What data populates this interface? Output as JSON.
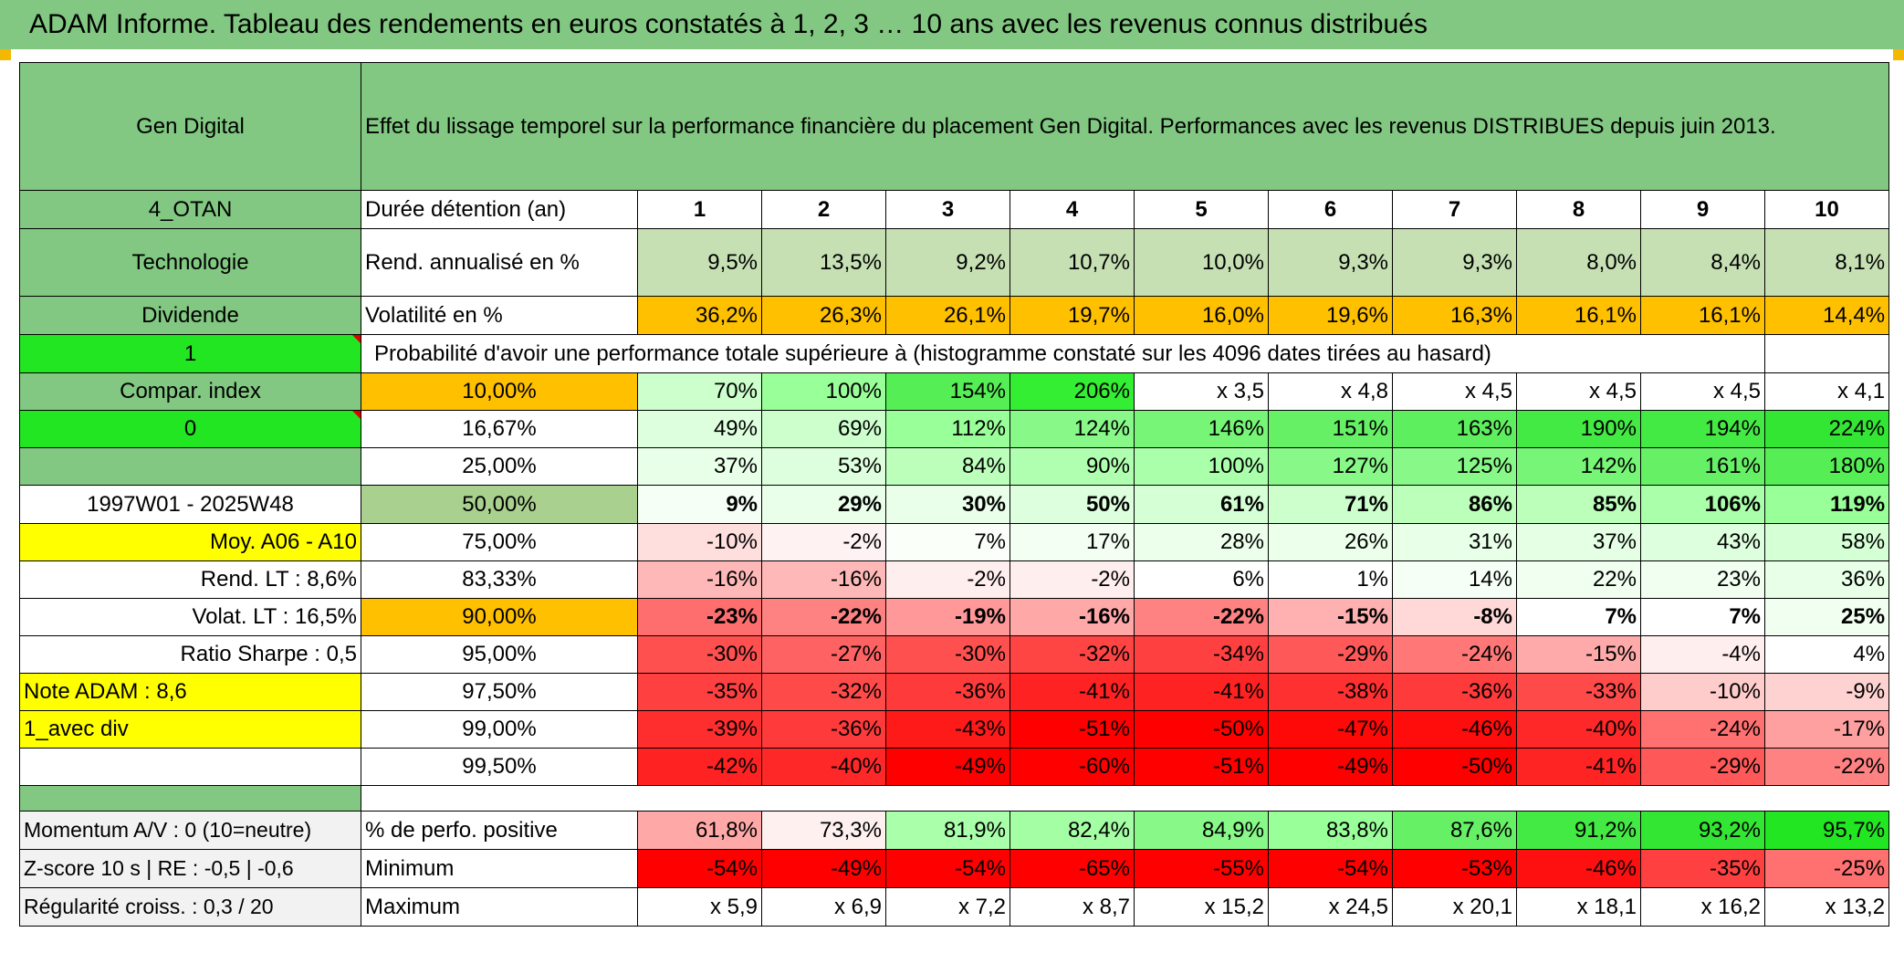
{
  "title": "ADAM Informe. Tableau des rendements en euros constatés à 1, 2, 3 … 10 ans avec les revenus connus distribués",
  "colors": {
    "header_green": "#82c882",
    "bright_green": "#22e622",
    "orange": "#ffc000",
    "yellow": "#ffff00",
    "label_red": "#d40000"
  },
  "header": {
    "name": "Gen Digital",
    "description": "Effet du lissage temporel sur la performance financière du placement Gen Digital. Performances avec les revenus DISTRIBUES depuis juin 2013."
  },
  "left_labels": {
    "code": "4_OTAN",
    "sector": "Technologie",
    "type": "Dividende",
    "flag1": "1",
    "compar": "Compar. index",
    "flag0": "0",
    "blank": "",
    "period": "1997W01 - 2025W48",
    "moy": "Moy. A06 - A10",
    "rend_lt": "Rend. LT :   8,6%",
    "volat_lt": "Volat. LT :   16,5%",
    "sharpe": "Ratio Sharpe :    0,5",
    "note": "Note ADAM : 8,6",
    "div": "1_avec div",
    "momentum": "Momentum A/V : 0 (10=neutre)",
    "zscore": "Z-score 10 s | RE : -0,5 | -0,6",
    "regularite": "Régularité croiss. : 0,3 / 20"
  },
  "durations": {
    "label": "Durée détention (an)",
    "years": [
      "1",
      "2",
      "3",
      "4",
      "5",
      "6",
      "7",
      "8",
      "9",
      "10"
    ]
  },
  "rend": {
    "label": "Rend. annualisé en %",
    "values": [
      "9,5%",
      "13,5%",
      "9,2%",
      "10,7%",
      "10,0%",
      "9,3%",
      "9,3%",
      "8,0%",
      "8,4%",
      "8,1%"
    ]
  },
  "volat": {
    "label": "Volatilité en %",
    "values": [
      "36,2%",
      "26,3%",
      "26,1%",
      "19,7%",
      "16,0%",
      "19,6%",
      "16,3%",
      "16,1%",
      "16,1%",
      "14,4%"
    ]
  },
  "prob_title": "Probabilité d'avoir une performance totale supérieure à (histogramme constaté sur les 4096 dates tirées au hasard)",
  "quantiles": [
    {
      "q": "10,00%",
      "values": [
        "70%",
        "100%",
        "154%",
        "206%",
        "x 3,5",
        "x 4,8",
        "x 4,5",
        "x 4,5",
        "x 4,5",
        "x 4,1"
      ],
      "colors": [
        "#ccffcc",
        "#99ff99",
        "#55ee55",
        "#33ee33",
        "#ffffff",
        "#ffffff",
        "#ffffff",
        "#ffffff",
        "#ffffff",
        "#ffffff"
      ]
    },
    {
      "q": "16,67%",
      "values": [
        "49%",
        "69%",
        "112%",
        "124%",
        "146%",
        "151%",
        "163%",
        "190%",
        "194%",
        "224%"
      ],
      "colors": [
        "#ddffdd",
        "#ccffcc",
        "#99ff99",
        "#88f888",
        "#77f577",
        "#66f066",
        "#5eef5e",
        "#44ea44",
        "#44ea44",
        "#33e633"
      ]
    },
    {
      "q": "25,00%",
      "values": [
        "37%",
        "53%",
        "84%",
        "90%",
        "100%",
        "127%",
        "125%",
        "142%",
        "161%",
        "180%"
      ],
      "colors": [
        "#e8ffe8",
        "#ddffdd",
        "#bbffbb",
        "#b0ffb0",
        "#aaffaa",
        "#88f888",
        "#88f888",
        "#77f577",
        "#66f066",
        "#55ee55"
      ]
    },
    {
      "q": "50,00%",
      "values": [
        "9%",
        "29%",
        "30%",
        "50%",
        "61%",
        "71%",
        "86%",
        "85%",
        "106%",
        "119%"
      ],
      "colors": [
        "#f5fff5",
        "#eaffea",
        "#eaffea",
        "#ddffdd",
        "#d5ffd5",
        "#ccffcc",
        "#bbffbb",
        "#bbffbb",
        "#aaffaa",
        "#99ff99"
      ]
    },
    {
      "q": "75,00%",
      "values": [
        "-10%",
        "-2%",
        "7%",
        "17%",
        "28%",
        "26%",
        "31%",
        "37%",
        "43%",
        "58%"
      ],
      "colors": [
        "#ffdede",
        "#fff2f2",
        "#fafffa",
        "#f2fff2",
        "#ebffeb",
        "#ebffeb",
        "#e8ffe8",
        "#e4ffe4",
        "#ddffdd",
        "#d5ffd5"
      ]
    },
    {
      "q": "83,33%",
      "values": [
        "-16%",
        "-16%",
        "-2%",
        "-2%",
        "6%",
        "1%",
        "14%",
        "22%",
        "23%",
        "36%"
      ],
      "colors": [
        "#ffb8b8",
        "#ffb8b8",
        "#ffeeee",
        "#ffeeee",
        "#ffffff",
        "#ffffff",
        "#f5fff5",
        "#f0fff0",
        "#f0fff0",
        "#e8ffe8"
      ]
    },
    {
      "q": "90,00%",
      "values": [
        "-23%",
        "-22%",
        "-19%",
        "-16%",
        "-22%",
        "-15%",
        "-8%",
        "7%",
        "7%",
        "25%"
      ],
      "colors": [
        "#ff6e6e",
        "#ff8282",
        "#ff9898",
        "#ffa8a8",
        "#ff8282",
        "#ffb0b0",
        "#ffd8d8",
        "#ffffff",
        "#ffffff",
        "#f0fff0"
      ]
    },
    {
      "q": "95,00%",
      "values": [
        "-30%",
        "-27%",
        "-30%",
        "-32%",
        "-34%",
        "-29%",
        "-24%",
        "-15%",
        "-4%",
        "4%"
      ],
      "colors": [
        "#ff5050",
        "#ff6262",
        "#ff5050",
        "#ff4444",
        "#ff4040",
        "#ff5858",
        "#ff7777",
        "#ffaaaa",
        "#ffeeee",
        "#ffffff"
      ]
    },
    {
      "q": "97,50%",
      "values": [
        "-35%",
        "-32%",
        "-36%",
        "-41%",
        "-41%",
        "-38%",
        "-36%",
        "-33%",
        "-10%",
        "-9%"
      ],
      "colors": [
        "#ff4040",
        "#ff4a4a",
        "#ff3a3a",
        "#ff2222",
        "#ff2222",
        "#ff3030",
        "#ff3a3a",
        "#ff4a4a",
        "#ffcccc",
        "#ffd2d2"
      ]
    },
    {
      "q": "99,00%",
      "values": [
        "-39%",
        "-36%",
        "-43%",
        "-51%",
        "-50%",
        "-47%",
        "-46%",
        "-40%",
        "-24%",
        "-17%"
      ],
      "colors": [
        "#ff2e2e",
        "#ff3a3a",
        "#ff1a1a",
        "#ff0000",
        "#ff0000",
        "#ff0808",
        "#ff0c0c",
        "#ff2828",
        "#ff7070",
        "#ffa0a0"
      ]
    },
    {
      "q": "99,50%",
      "values": [
        "-42%",
        "-40%",
        "-49%",
        "-60%",
        "-51%",
        "-49%",
        "-50%",
        "-41%",
        "-29%",
        "-22%"
      ],
      "colors": [
        "#ff2222",
        "#ff2828",
        "#ff0000",
        "#ff0000",
        "#ff0000",
        "#ff0000",
        "#ff0000",
        "#ff2424",
        "#ff5858",
        "#ff8282"
      ]
    }
  ],
  "positive": {
    "label": "% de perfo. positive",
    "values": [
      "61,8%",
      "73,3%",
      "81,9%",
      "82,4%",
      "84,9%",
      "83,8%",
      "87,6%",
      "91,2%",
      "93,2%",
      "95,7%"
    ],
    "colors": [
      "#ffa8a8",
      "#fff0f0",
      "#aaffaa",
      "#a4ffa4",
      "#88f888",
      "#99ff99",
      "#66f066",
      "#44ea44",
      "#33e633",
      "#22e622"
    ]
  },
  "minimum": {
    "label": "Minimum",
    "values": [
      "-54%",
      "-49%",
      "-54%",
      "-65%",
      "-55%",
      "-54%",
      "-53%",
      "-46%",
      "-35%",
      "-25%"
    ],
    "colors": [
      "#ff0000",
      "#ff0000",
      "#ff0000",
      "#ff0000",
      "#ff0000",
      "#ff0000",
      "#ff0000",
      "#ff1010",
      "#ff4040",
      "#ff7070"
    ]
  },
  "maximum": {
    "label": "Maximum",
    "values": [
      "x 5,9",
      "x 6,9",
      "x 7,2",
      "x 8,7",
      "x 15,2",
      "x 24,5",
      "x 20,1",
      "x 18,1",
      "x 16,2",
      "x 13,2"
    ]
  }
}
